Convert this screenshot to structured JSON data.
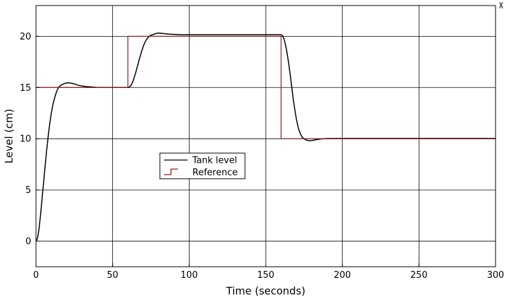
{
  "chart_data": {
    "type": "line",
    "title": "",
    "xlabel": "Time (seconds)",
    "ylabel": "Level (cm)",
    "xlim": [
      0,
      300
    ],
    "ylim": [
      -2.5,
      23
    ],
    "xticks": [
      0,
      50,
      100,
      150,
      200,
      250,
      300
    ],
    "yticks": [
      0,
      5,
      10,
      15,
      20
    ],
    "grid": true,
    "legend": {
      "position": "center-left",
      "box": true
    },
    "series": [
      {
        "name": "Tank level",
        "color": "#000000",
        "style": "line",
        "points": [
          [
            0,
            0
          ],
          [
            1,
            0.3
          ],
          [
            2,
            1.2
          ],
          [
            3,
            2.6
          ],
          [
            4,
            4.2
          ],
          [
            5,
            5.8
          ],
          [
            6,
            7.4
          ],
          [
            7,
            8.9
          ],
          [
            8,
            10.3
          ],
          [
            9,
            11.5
          ],
          [
            10,
            12.5
          ],
          [
            11,
            13.3
          ],
          [
            12,
            13.9
          ],
          [
            13,
            14.4
          ],
          [
            14,
            14.8
          ],
          [
            15,
            15.05
          ],
          [
            16,
            15.2
          ],
          [
            18,
            15.35
          ],
          [
            20,
            15.45
          ],
          [
            22,
            15.45
          ],
          [
            25,
            15.35
          ],
          [
            28,
            15.2
          ],
          [
            32,
            15.1
          ],
          [
            36,
            15.05
          ],
          [
            40,
            15.0
          ],
          [
            50,
            15.0
          ],
          [
            60,
            15.0
          ],
          [
            61,
            15.05
          ],
          [
            62,
            15.2
          ],
          [
            63,
            15.5
          ],
          [
            64,
            15.9
          ],
          [
            65,
            16.4
          ],
          [
            66,
            16.95
          ],
          [
            67,
            17.5
          ],
          [
            68,
            18.05
          ],
          [
            69,
            18.55
          ],
          [
            70,
            19.0
          ],
          [
            71,
            19.35
          ],
          [
            72,
            19.65
          ],
          [
            73,
            19.85
          ],
          [
            74,
            20.0
          ],
          [
            75,
            20.1
          ],
          [
            77,
            20.2
          ],
          [
            79,
            20.3
          ],
          [
            81,
            20.3
          ],
          [
            84,
            20.25
          ],
          [
            88,
            20.2
          ],
          [
            95,
            20.15
          ],
          [
            100,
            20.15
          ],
          [
            150,
            20.15
          ],
          [
            160,
            20.15
          ],
          [
            161,
            20.05
          ],
          [
            162,
            19.7
          ],
          [
            163,
            19.1
          ],
          [
            164,
            18.3
          ],
          [
            165,
            17.3
          ],
          [
            166,
            16.2
          ],
          [
            167,
            15.0
          ],
          [
            168,
            13.8
          ],
          [
            169,
            12.8
          ],
          [
            170,
            11.9
          ],
          [
            171,
            11.2
          ],
          [
            172,
            10.7
          ],
          [
            173,
            10.35
          ],
          [
            174,
            10.1
          ],
          [
            176,
            9.9
          ],
          [
            178,
            9.8
          ],
          [
            180,
            9.82
          ],
          [
            183,
            9.9
          ],
          [
            186,
            9.98
          ],
          [
            190,
            10.02
          ],
          [
            200,
            10.03
          ],
          [
            300,
            10.03
          ]
        ]
      },
      {
        "name": "Reference",
        "color": "#8b1a1a",
        "style": "step",
        "points": [
          [
            0,
            15
          ],
          [
            60,
            15
          ],
          [
            60,
            20
          ],
          [
            160,
            20
          ],
          [
            160,
            10
          ],
          [
            300,
            10
          ]
        ]
      }
    ]
  },
  "corner_glyph": "⊼"
}
